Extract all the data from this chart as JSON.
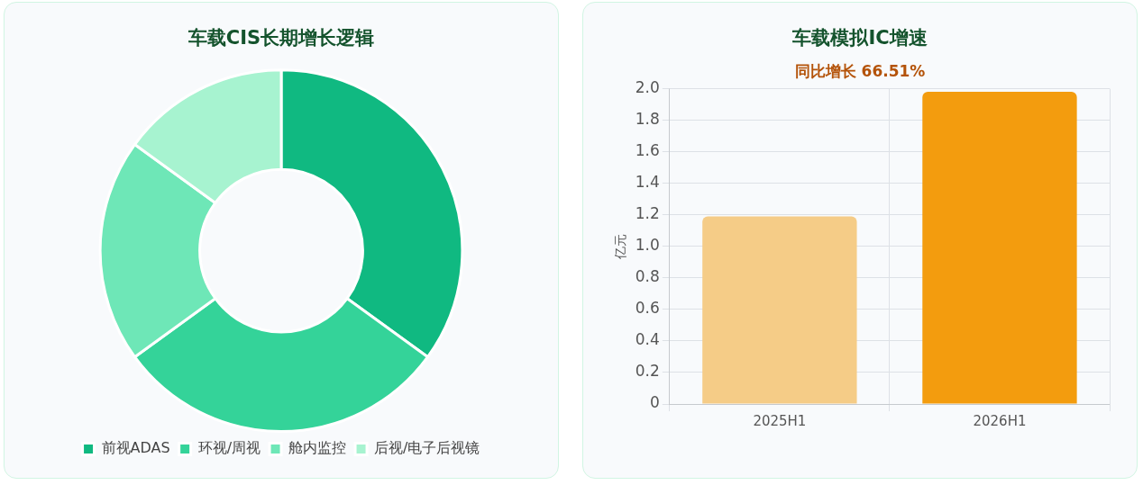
{
  "chart_data": [
    {
      "type": "donut",
      "title": "车载CIS长期增长逻辑",
      "categories": [
        "前视ADAS",
        "环视/周视",
        "舱内监控",
        "后视/电子后视镜"
      ],
      "values": [
        35,
        30,
        20,
        15
      ],
      "colors": [
        "#10b981",
        "#34d399",
        "#6ee7b7",
        "#a7f3d0"
      ],
      "legend": "bottom"
    },
    {
      "type": "bar",
      "title": "车载模拟IC增速",
      "subtitle": "同比增长 66.51%",
      "ylabel": "亿元",
      "categories": [
        "2025H1",
        "2026H1"
      ],
      "values": [
        1.19,
        1.98
      ],
      "colors": [
        "#f5cc87",
        "#f39c0e"
      ],
      "ylim": [
        0,
        2
      ],
      "yticks": [
        0,
        0.2,
        0.4,
        0.6,
        0.8,
        {
          "value": 1,
          "label": "1.0"
        },
        1.2,
        1.4,
        1.6,
        1.8,
        {
          "value": 2,
          "label": "2.0"
        }
      ],
      "grid": true
    }
  ]
}
